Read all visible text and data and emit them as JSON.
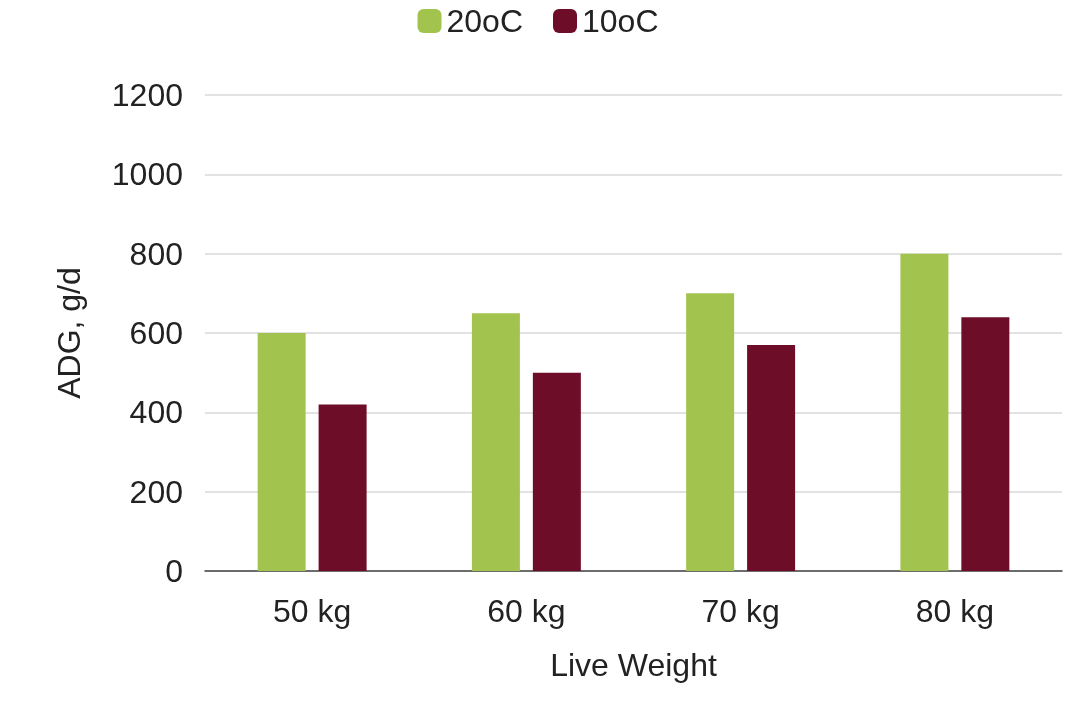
{
  "chart_data": {
    "type": "bar",
    "xlabel": "Live Weight",
    "ylabel": "ADG, g/d",
    "categories": [
      "50 kg",
      "60 kg",
      "70 kg",
      "80 kg"
    ],
    "series": [
      {
        "name": "20oC",
        "color": "#a2c44e",
        "values": [
          600,
          650,
          700,
          800
        ]
      },
      {
        "name": "10oC",
        "color": "#6e0d28",
        "values": [
          420,
          500,
          570,
          640
        ]
      }
    ],
    "ylim": [
      0,
      1200
    ],
    "yticks": [
      0,
      200,
      400,
      600,
      800,
      1000,
      1200
    ],
    "grid": "y",
    "legend": "top"
  }
}
